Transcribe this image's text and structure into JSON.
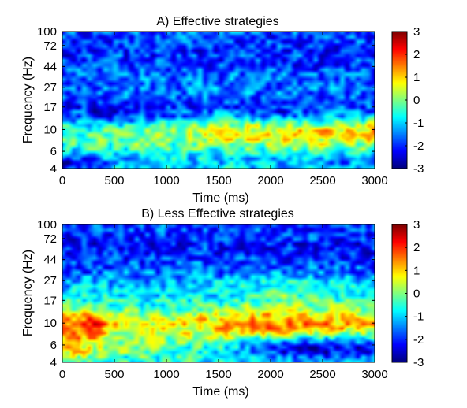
{
  "chart_data": [
    {
      "type": "heatmap",
      "title": "A) Effective strategies",
      "xlabel": "Time (ms)",
      "ylabel": "Frequency (Hz)",
      "xlim": [
        0,
        3000
      ],
      "ylim": [
        4,
        100
      ],
      "y_scale": "log",
      "xticks": [
        "0",
        "500",
        "1000",
        "1500",
        "2000",
        "2500",
        "3000"
      ],
      "yticks": [
        "4",
        "6",
        "10",
        "17",
        "27",
        "44",
        "72",
        "100"
      ],
      "colorbar": {
        "ticks": [
          "3",
          "2",
          "1",
          "0",
          "-1",
          "-2",
          "-3"
        ],
        "range": [
          -3,
          3
        ],
        "colormap": "jet"
      },
      "bands": [
        {
          "freq": 9.5,
          "sigma": 0.11,
          "values_by_time": [
            {
              "t": 0,
              "v": 0.6
            },
            {
              "t": 500,
              "v": 0.9
            },
            {
              "t": 1000,
              "v": 1.0
            },
            {
              "t": 1500,
              "v": 1.6
            },
            {
              "t": 2000,
              "v": 1.8
            },
            {
              "t": 2500,
              "v": 1.9
            },
            {
              "t": 3000,
              "v": 2.0
            }
          ]
        },
        {
          "freq": 4.5,
          "sigma": 0.07,
          "values_by_time": [
            {
              "t": 0,
              "v": -2.2
            },
            {
              "t": 500,
              "v": -0.6
            },
            {
              "t": 1000,
              "v": -0.5
            },
            {
              "t": 1500,
              "v": -0.4
            },
            {
              "t": 2000,
              "v": -0.6
            },
            {
              "t": 2500,
              "v": -0.8
            },
            {
              "t": 3000,
              "v": -1.0
            }
          ]
        },
        {
          "freq": 15,
          "sigma": 0.12,
          "values_by_time": [
            {
              "t": 0,
              "v": -1.0
            },
            {
              "t": 500,
              "v": -1.6
            },
            {
              "t": 1000,
              "v": -1.2
            },
            {
              "t": 1500,
              "v": -1.0
            },
            {
              "t": 2000,
              "v": -1.4
            },
            {
              "t": 2500,
              "v": -1.2
            },
            {
              "t": 3000,
              "v": -1.0
            }
          ]
        },
        {
          "freq": 60,
          "sigma": 0.35,
          "values_by_time": [
            {
              "t": 0,
              "v": -1.4
            },
            {
              "t": 1500,
              "v": -1.3
            },
            {
              "t": 3000,
              "v": -1.4
            }
          ]
        }
      ]
    },
    {
      "type": "heatmap",
      "title": "B) Less Effective strategies",
      "xlabel": "Time (ms)",
      "ylabel": "Frequency (Hz)",
      "xlim": [
        0,
        3000
      ],
      "ylim": [
        4,
        100
      ],
      "y_scale": "log",
      "xticks": [
        "0",
        "500",
        "1000",
        "1500",
        "2000",
        "2500",
        "3000"
      ],
      "yticks": [
        "4",
        "6",
        "10",
        "17",
        "27",
        "44",
        "72",
        "100"
      ],
      "colorbar": {
        "ticks": [
          "3",
          "2",
          "1",
          "0",
          "-1",
          "-2",
          "-3"
        ],
        "range": [
          -3,
          3
        ],
        "colormap": "jet"
      },
      "bands": [
        {
          "freq": 9.5,
          "sigma": 0.11,
          "values_by_time": [
            {
              "t": 0,
              "v": 2.2
            },
            {
              "t": 250,
              "v": 2.8
            },
            {
              "t": 500,
              "v": 1.6
            },
            {
              "t": 1000,
              "v": 1.3
            },
            {
              "t": 1500,
              "v": 1.9
            },
            {
              "t": 2000,
              "v": 2.3
            },
            {
              "t": 2500,
              "v": 2.0
            },
            {
              "t": 3000,
              "v": 1.8
            }
          ]
        },
        {
          "freq": 5.5,
          "sigma": 0.09,
          "values_by_time": [
            {
              "t": 0,
              "v": 1.6
            },
            {
              "t": 500,
              "v": 0.4
            },
            {
              "t": 1000,
              "v": 0.2
            },
            {
              "t": 1500,
              "v": -0.2
            },
            {
              "t": 2000,
              "v": -1.6
            },
            {
              "t": 2500,
              "v": -2.2
            },
            {
              "t": 3000,
              "v": -1.6
            }
          ]
        },
        {
          "freq": 20,
          "sigma": 0.14,
          "values_by_time": [
            {
              "t": 0,
              "v": 0.3
            },
            {
              "t": 1500,
              "v": 0.3
            },
            {
              "t": 2000,
              "v": 0.9
            },
            {
              "t": 2500,
              "v": 0.7
            },
            {
              "t": 3000,
              "v": 0.4
            }
          ]
        },
        {
          "freq": 60,
          "sigma": 0.35,
          "values_by_time": [
            {
              "t": 0,
              "v": -1.5
            },
            {
              "t": 1500,
              "v": -1.4
            },
            {
              "t": 3000,
              "v": -1.5
            }
          ]
        }
      ]
    }
  ]
}
